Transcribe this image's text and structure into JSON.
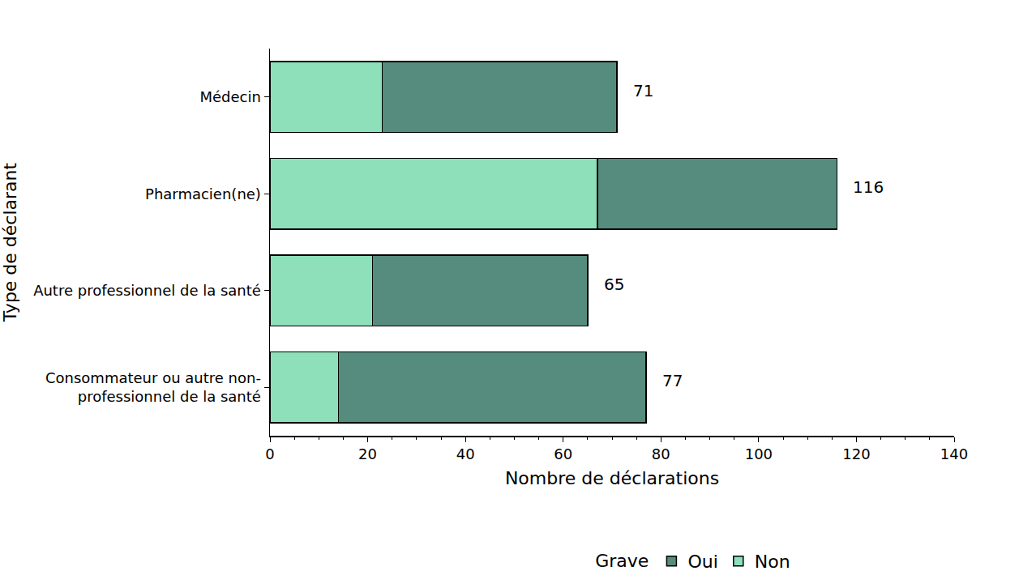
{
  "chart_data": {
    "type": "bar",
    "orientation": "horizontal",
    "stacked": true,
    "x_label": "Nombre de déclarations",
    "y_label": "Type de déclarant",
    "categories": [
      "Médecin",
      "Pharmacien(ne)",
      "Autre professionnel de la santé",
      "Consommateur ou autre non-professionnel de la santé"
    ],
    "series": [
      {
        "name": "Non",
        "color": "#8de0b9",
        "values": [
          23,
          67,
          21,
          14
        ]
      },
      {
        "name": "Oui",
        "color": "#558c7e",
        "values": [
          48,
          49,
          44,
          63
        ]
      }
    ],
    "totals": [
      71,
      116,
      65,
      77
    ],
    "legend_title": "Grave",
    "legend": "bottom",
    "xlim": [
      0,
      140
    ],
    "xticks": [
      0,
      20,
      40,
      60,
      80,
      100,
      120,
      140
    ],
    "grid": false
  }
}
